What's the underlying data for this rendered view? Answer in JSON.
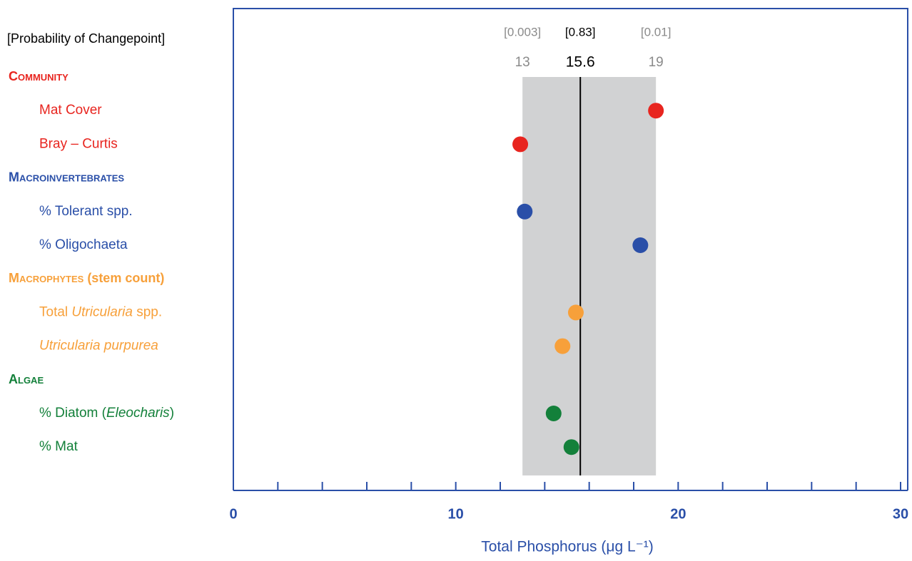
{
  "chart_data": {
    "type": "dot",
    "header": "[Probability of Changepoint]",
    "x_label": "Total Phosphorus (μg L⁻¹)",
    "xlim": [
      0,
      30
    ],
    "xticks": [
      0,
      10,
      20,
      30
    ],
    "xticks_minor": [
      2,
      4,
      6,
      8,
      12,
      14,
      16,
      18,
      22,
      24,
      26,
      28
    ],
    "changepoints": [
      {
        "value": 13,
        "probability": {
          "value": 0.003,
          "label": "[0.003]"
        },
        "color": "#8a8a8a"
      },
      {
        "value": 15.6,
        "probability": {
          "value": 0.83,
          "label": "[0.83]"
        },
        "color": "#000000"
      },
      {
        "value": 19,
        "probability": {
          "value": 0.01,
          "label": "[0.01]"
        },
        "color": "#8a8a8a"
      }
    ],
    "band_color": "#d1d2d3",
    "groups": [
      {
        "name": "Community",
        "color": "#e8251f",
        "items": [
          {
            "label": [
              {
                "text": "Mat Cover"
              }
            ],
            "value": 19.0
          },
          {
            "label": [
              {
                "text": "Bray – Curtis"
              }
            ],
            "value": 12.9
          }
        ]
      },
      {
        "name": "Macroinvertebrates",
        "color": "#2a4fa8",
        "items": [
          {
            "label": [
              {
                "text": "% Tolerant spp."
              }
            ],
            "value": 13.1
          },
          {
            "label": [
              {
                "text": "% Oligochaeta"
              }
            ],
            "value": 18.3
          }
        ]
      },
      {
        "name": "Macrophytes",
        "note": "(stem count)",
        "color": "#f7a03a",
        "items": [
          {
            "label": [
              {
                "text": "Total "
              },
              {
                "text": "Utricularia",
                "italic": true
              },
              {
                "text": " spp."
              }
            ],
            "value": 15.4
          },
          {
            "label": [
              {
                "text": "Utricularia purpurea",
                "italic": true
              }
            ],
            "value": 14.8
          }
        ]
      },
      {
        "name": "Algae",
        "color": "#13803a",
        "items": [
          {
            "label": [
              {
                "text": "% Diatom ("
              },
              {
                "text": "Eleocharis",
                "italic": true
              },
              {
                "text": ")"
              }
            ],
            "value": 14.4
          },
          {
            "label": [
              {
                "text": "% Mat"
              }
            ],
            "value": 15.2
          }
        ]
      }
    ]
  }
}
